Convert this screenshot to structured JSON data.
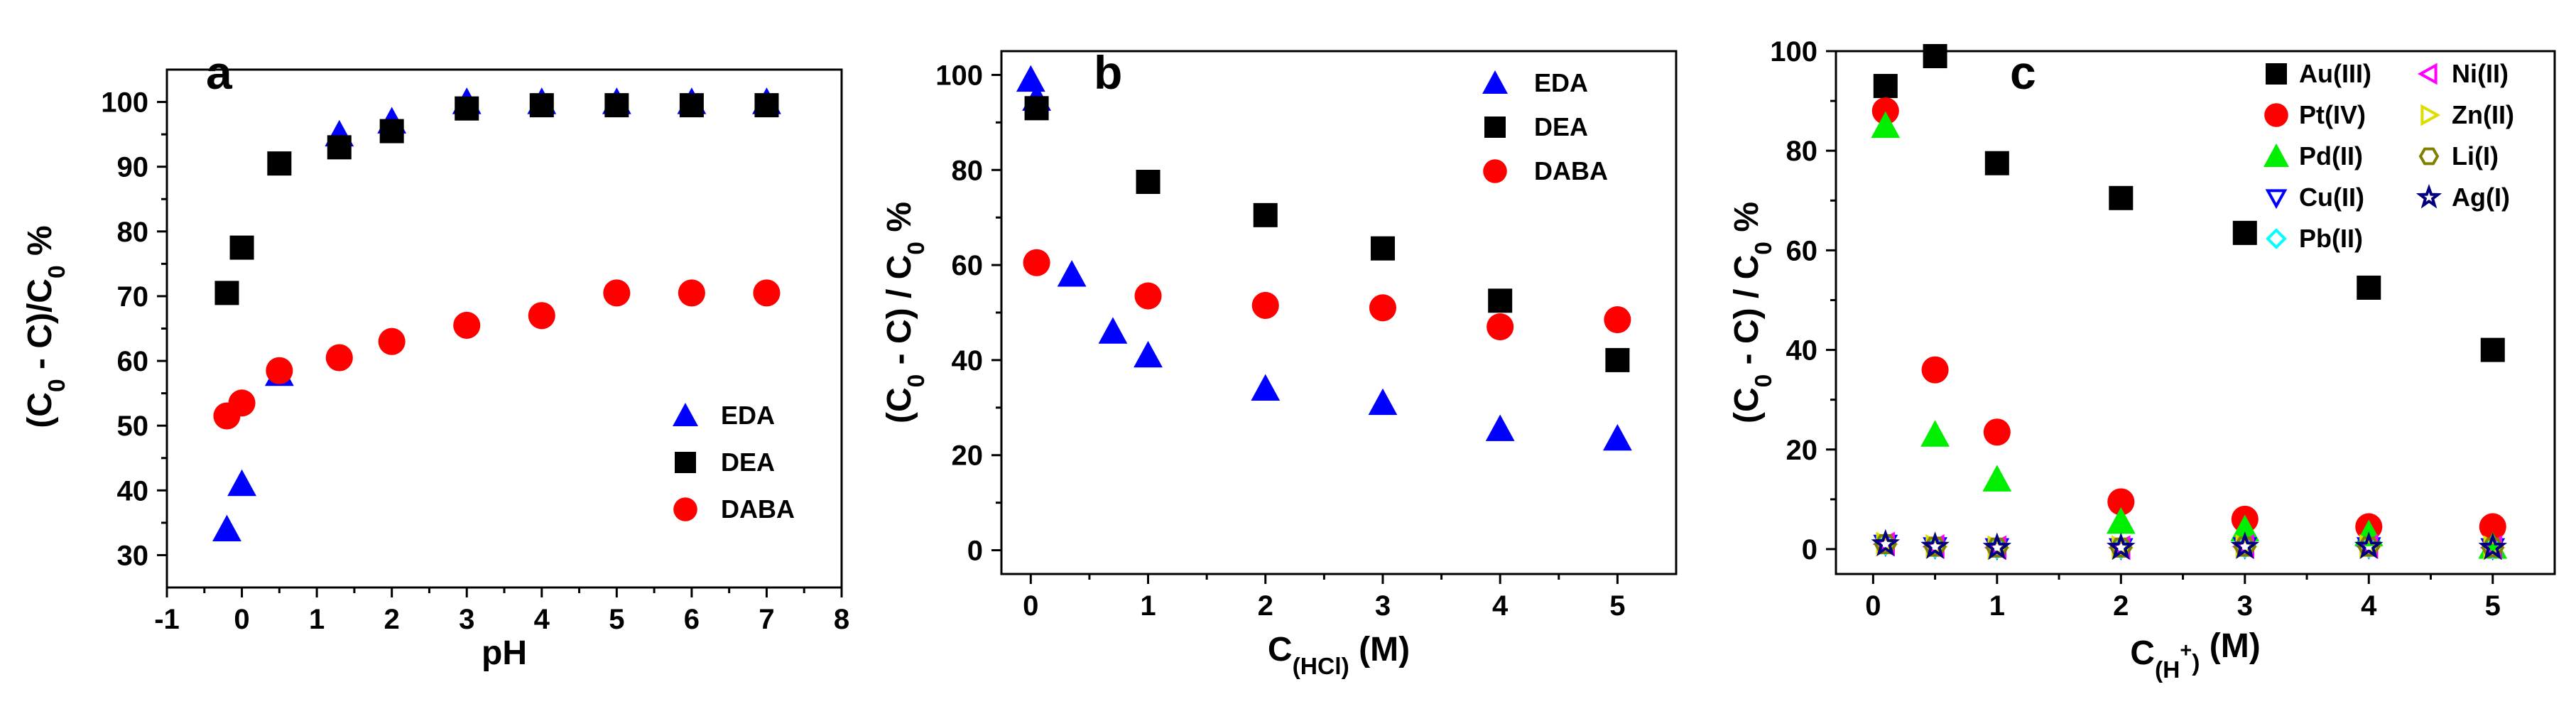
{
  "chart_data": [
    {
      "panel": "a",
      "type": "scatter",
      "xlabel": "pH",
      "ylabel": "(C0 - C)/C0 %",
      "xlim": [
        -1,
        8
      ],
      "ylim": [
        25,
        105
      ],
      "xticks": [
        -1,
        0,
        1,
        2,
        3,
        4,
        5,
        6,
        7,
        8
      ],
      "yticks": [
        30,
        40,
        50,
        60,
        70,
        80,
        90,
        100
      ],
      "legend": "bottom-right",
      "series": [
        {
          "name": "EDA",
          "marker": "triangle-up",
          "color": "#0000ff",
          "x": [
            -0.2,
            0,
            0.5,
            1.3,
            2,
            3,
            4,
            5,
            6,
            7
          ],
          "y": [
            34,
            41,
            58,
            95,
            97,
            100,
            100,
            100,
            100,
            100
          ]
        },
        {
          "name": "DEA",
          "marker": "square",
          "color": "#000000",
          "x": [
            -0.2,
            0,
            0.5,
            1.3,
            2,
            3,
            4,
            5,
            6,
            7
          ],
          "y": [
            70.5,
            77.5,
            90.5,
            93,
            95.5,
            99,
            99.5,
            99.5,
            99.5,
            99.5
          ]
        },
        {
          "name": "DABA",
          "marker": "circle",
          "color": "#ff0000",
          "x": [
            -0.2,
            0,
            0.5,
            1.3,
            2,
            3,
            4,
            5,
            6,
            7
          ],
          "y": [
            51.5,
            53.5,
            58.5,
            60.5,
            63,
            65.5,
            67,
            70.5,
            70.5,
            70.5
          ]
        }
      ]
    },
    {
      "panel": "b",
      "type": "scatter",
      "xlabel": "C(HCl) (M)",
      "ylabel": "(C0 - C) / C0 %",
      "xlim": [
        -0.25,
        5.5
      ],
      "ylim": [
        -5,
        105
      ],
      "xticks": [
        0,
        1,
        2,
        3,
        4,
        5
      ],
      "yticks": [
        0,
        20,
        40,
        60,
        80,
        100
      ],
      "legend": "top-right",
      "series": [
        {
          "name": "EDA",
          "marker": "triangle-up",
          "color": "#0000ff",
          "x": [
            0,
            0.05,
            0.35,
            0.7,
            1,
            2,
            3,
            4,
            5
          ],
          "y": [
            99,
            95,
            58,
            46,
            41,
            34,
            31,
            25.5,
            23.5
          ]
        },
        {
          "name": "DEA",
          "marker": "square",
          "color": "#000000",
          "x": [
            0.05,
            1,
            2,
            3,
            4,
            5
          ],
          "y": [
            93,
            77.5,
            70.5,
            63.5,
            52.5,
            40
          ]
        },
        {
          "name": "DABA",
          "marker": "circle",
          "color": "#ff0000",
          "x": [
            0.05,
            1,
            2,
            3,
            4,
            5
          ],
          "y": [
            60.5,
            53.5,
            51.5,
            51,
            47,
            48.5
          ]
        }
      ]
    },
    {
      "panel": "c",
      "type": "scatter",
      "xlabel": "C(H+) (M)",
      "ylabel": "(C0 - C) / C0 %",
      "xlim": [
        -0.3,
        5.5
      ],
      "ylim": [
        -5,
        100
      ],
      "xticks": [
        0,
        1,
        2,
        3,
        4,
        5
      ],
      "yticks": [
        0,
        20,
        40,
        60,
        80,
        100
      ],
      "legend": "top-right",
      "series": [
        {
          "name": "Au(III)",
          "marker": "square",
          "color": "#000000",
          "x": [
            0.1,
            0.5,
            1,
            2,
            3,
            4,
            5
          ],
          "y": [
            93,
            99,
            77.5,
            70.5,
            63.5,
            52.5,
            40
          ]
        },
        {
          "name": "Pt(IV)",
          "marker": "circle",
          "color": "#ff0000",
          "x": [
            0.1,
            0.5,
            1,
            2,
            3,
            4,
            5
          ],
          "y": [
            88,
            36,
            23.5,
            9.5,
            6,
            4.5,
            4.5
          ]
        },
        {
          "name": "Pd(II)",
          "marker": "triangle-up",
          "color": "#00ee00",
          "x": [
            0.1,
            0.5,
            1,
            2,
            3,
            4,
            5
          ],
          "y": [
            85,
            23,
            14,
            5.5,
            4,
            3,
            0.5
          ]
        },
        {
          "name": "Cu(II)",
          "marker": "triangle-down-open",
          "color": "#0000ff",
          "x": [
            0.1,
            0.5,
            1,
            2,
            3,
            4,
            5
          ],
          "y": [
            1,
            0.5,
            0.3,
            0.3,
            0.5,
            0.5,
            0.3
          ]
        },
        {
          "name": "Pb(II)",
          "marker": "diamond-open",
          "color": "#00ffff",
          "x": [
            0.1,
            0.5,
            1,
            2,
            3,
            4,
            5
          ],
          "y": [
            1,
            0.5,
            0.3,
            0.3,
            0.5,
            0.5,
            0.3
          ]
        },
        {
          "name": "Ni(II)",
          "marker": "triangle-left-open",
          "color": "#ff00ff",
          "x": [
            0.1,
            0.5,
            1,
            2,
            3,
            4,
            5
          ],
          "y": [
            1,
            0.5,
            0.3,
            0.3,
            0.5,
            0.5,
            0.3
          ]
        },
        {
          "name": "Zn(II)",
          "marker": "triangle-right-open",
          "color": "#dddd00",
          "x": [
            0.1,
            0.5,
            1,
            2,
            3,
            4,
            5
          ],
          "y": [
            1,
            0.5,
            0.3,
            0.3,
            0.5,
            0.5,
            0.3
          ]
        },
        {
          "name": "Li(I)",
          "marker": "hexagon-open",
          "color": "#808000",
          "x": [
            0.1,
            0.5,
            1,
            2,
            3,
            4,
            5
          ],
          "y": [
            1,
            0.5,
            0.3,
            0.3,
            0.5,
            0.5,
            0.3
          ]
        },
        {
          "name": "Ag(I)",
          "marker": "star-open",
          "color": "#000080",
          "x": [
            0.1,
            0.5,
            1,
            2,
            3,
            4,
            5
          ],
          "y": [
            1,
            0.5,
            0.3,
            0.3,
            0.5,
            0.5,
            0.3
          ]
        }
      ]
    }
  ]
}
